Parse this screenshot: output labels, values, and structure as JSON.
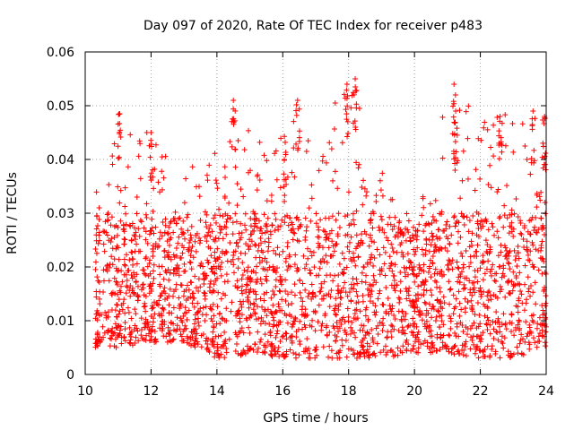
{
  "chart_data": {
    "type": "scatter",
    "title": "Day 097 of 2020, Rate Of TEC Index for receiver p483",
    "xlabel": "GPS time / hours",
    "ylabel": "ROTI / TECUs",
    "xlim": [
      10,
      24
    ],
    "ylim": [
      0,
      0.06
    ],
    "xticks": [
      "10",
      "12",
      "14",
      "16",
      "18",
      "20",
      "22",
      "24"
    ],
    "yticks": [
      "0",
      "0.01",
      "0.02",
      "0.03",
      "0.04",
      "0.05",
      "0.06"
    ],
    "grid": true,
    "marker": "+",
    "color": "#ff0000",
    "series": [
      {
        "name": "p483",
        "hourly_envelope": [
          {
            "hour": 10.0,
            "low": 0.005,
            "high": 0.028
          },
          {
            "hour": 11.0,
            "low": 0.005,
            "high": 0.048
          },
          {
            "hour": 12.0,
            "low": 0.006,
            "high": 0.045
          },
          {
            "hour": 13.0,
            "low": 0.006,
            "high": 0.038
          },
          {
            "hour": 14.0,
            "low": 0.003,
            "high": 0.042
          },
          {
            "hour": 14.5,
            "low": 0.003,
            "high": 0.051
          },
          {
            "hour": 15.0,
            "low": 0.004,
            "high": 0.045
          },
          {
            "hour": 16.0,
            "low": 0.003,
            "high": 0.044
          },
          {
            "hour": 16.5,
            "low": 0.003,
            "high": 0.051
          },
          {
            "hour": 17.0,
            "low": 0.003,
            "high": 0.044
          },
          {
            "hour": 18.0,
            "low": 0.003,
            "high": 0.055
          },
          {
            "hour": 19.0,
            "low": 0.003,
            "high": 0.04
          },
          {
            "hour": 20.0,
            "low": 0.004,
            "high": 0.028
          },
          {
            "hour": 21.0,
            "low": 0.004,
            "high": 0.054
          },
          {
            "hour": 22.0,
            "low": 0.003,
            "high": 0.048
          },
          {
            "hour": 23.0,
            "low": 0.003,
            "high": 0.049
          },
          {
            "hour": 24.0,
            "low": 0.005,
            "high": 0.048
          }
        ],
        "bulk_range": [
          0.005,
          0.03
        ],
        "peaks": [
          {
            "x": 11.05,
            "y": 0.0485
          },
          {
            "x": 12.0,
            "y": 0.045
          },
          {
            "x": 14.5,
            "y": 0.051
          },
          {
            "x": 16.05,
            "y": 0.0443
          },
          {
            "x": 16.45,
            "y": 0.051
          },
          {
            "x": 17.95,
            "y": 0.054
          },
          {
            "x": 18.2,
            "y": 0.055
          },
          {
            "x": 21.2,
            "y": 0.054
          },
          {
            "x": 21.25,
            "y": 0.049
          },
          {
            "x": 22.6,
            "y": 0.048
          },
          {
            "x": 23.6,
            "y": 0.049
          },
          {
            "x": 23.95,
            "y": 0.048
          }
        ]
      }
    ]
  }
}
